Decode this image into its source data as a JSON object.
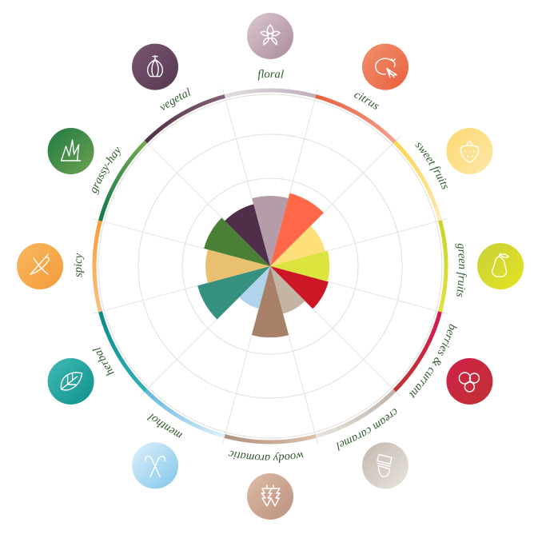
{
  "chart_data": {
    "type": "polar-area",
    "title": "",
    "scale": {
      "min": 0,
      "max": 4,
      "grid_levels": [
        2,
        3,
        4
      ],
      "grid": true
    },
    "categories": [
      {
        "label": "floral",
        "value": 1.6,
        "icon": "flower-icon",
        "wedge": "#b49ca8",
        "ring": [
          "#e2dee2",
          "#bfaebb"
        ],
        "badge": [
          "#dcc8d0",
          "#a98a9c"
        ]
      },
      {
        "label": "citrus",
        "value": 1.72,
        "icon": "lemon-icon",
        "wedge": "#ff6848",
        "ring": [
          "#e8603e",
          "#f2a08e"
        ],
        "badge": [
          "#f2906e",
          "#e8603e"
        ]
      },
      {
        "label": "sweet fruits",
        "value": 1.3,
        "icon": "strawberry-icon",
        "wedge": "#fde07a",
        "ring": [
          "#fbd44a",
          "#fde9b6"
        ],
        "badge": [
          "#fcd870",
          "#fee8a8"
        ]
      },
      {
        "label": "green fruits",
        "value": 1.35,
        "icon": "pear-icon",
        "wedge": "#dce43e",
        "ring": [
          "#c9d42c",
          "#dfe23a"
        ],
        "badge": [
          "#c8d03a",
          "#e4e420"
        ]
      },
      {
        "label": "berries & currant",
        "value": 1.37,
        "icon": "currant-icon",
        "wedge": "#cc1626",
        "ring": [
          "#d41a52",
          "#c23430"
        ],
        "badge": [
          "#d0204a",
          "#c03232"
        ]
      },
      {
        "label": "cream caramel",
        "value": 1.12,
        "icon": "cream-icon",
        "wedge": "#c4b4a4",
        "ring": [
          "#bdb1a9",
          "#e9e5dd"
        ],
        "badge": [
          "#c4b8b0",
          "#e8e4dc"
        ]
      },
      {
        "label": "woody aromatic",
        "value": 1.62,
        "icon": "pine-trees-icon",
        "wedge": "#a88068",
        "ring": [
          "#dcc0a8",
          "#b09080"
        ],
        "badge": [
          "#dcbca4",
          "#bc9080"
        ]
      },
      {
        "label": "menthol",
        "value": 1.0,
        "icon": "candy-cane-icon",
        "wedge": "#b0d4ec",
        "ring": [
          "#e2f0fa",
          "#5cb6e0"
        ],
        "badge": [
          "#dff0fb",
          "#80c6ea"
        ]
      },
      {
        "label": "herbal",
        "value": 1.71,
        "icon": "leaf-icon",
        "wedge": "#36907f",
        "ring": [
          "#32b2b8",
          "#0a8a8a"
        ],
        "badge": [
          "#40bab4",
          "#10908e"
        ]
      },
      {
        "label": "spicy",
        "value": 1.47,
        "icon": "chili-pepper-icon",
        "wedge": "#e8c070",
        "ring": [
          "#f8c080",
          "#f79c3a"
        ],
        "badge": [
          "#f8b860",
          "#f49a38"
        ]
      },
      {
        "label": "grassy-hay",
        "value": 1.56,
        "icon": "grass-icon",
        "wedge": "#4a8036",
        "ring": [
          "#117848",
          "#74aa52"
        ],
        "badge": [
          "#1e7a44",
          "#6ea24e"
        ]
      },
      {
        "label": "vegetal",
        "value": 1.46,
        "icon": "onion-icon",
        "wedge": "#4e2e48",
        "ring": [
          "#4e2e46",
          "#836279"
        ],
        "badge": [
          "#7a5672",
          "#553850"
        ]
      }
    ],
    "label_color": "#2f5a2c",
    "grid_color": "#e6e4e0"
  }
}
